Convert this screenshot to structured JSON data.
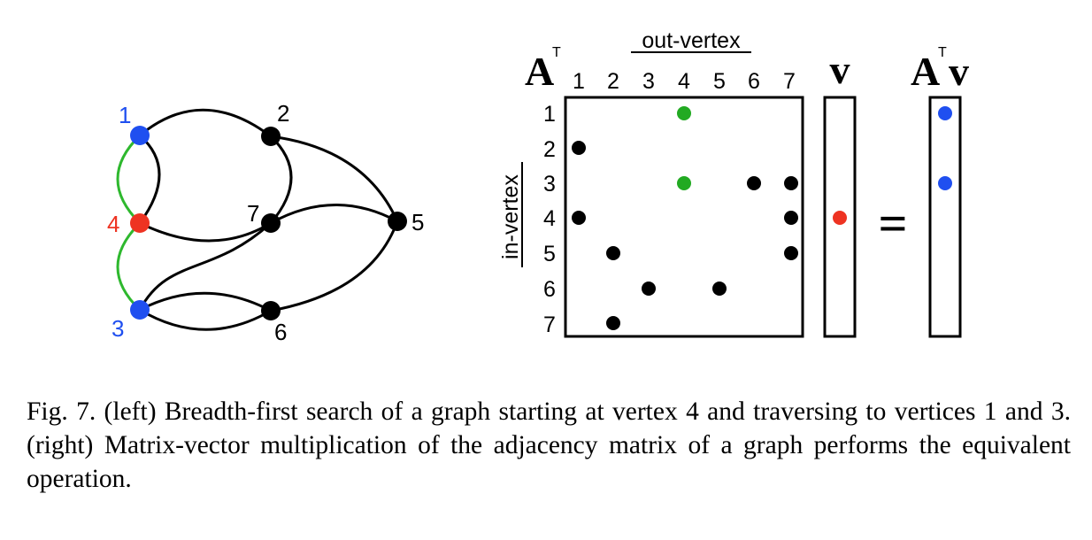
{
  "graph": {
    "vertices": [
      {
        "label": "1",
        "state": "visited"
      },
      {
        "label": "2",
        "state": "default"
      },
      {
        "label": "3",
        "state": "visited"
      },
      {
        "label": "4",
        "state": "start"
      },
      {
        "label": "5",
        "state": "default"
      },
      {
        "label": "6",
        "state": "default"
      },
      {
        "label": "7",
        "state": "default"
      }
    ],
    "edges": [
      {
        "from": "1",
        "to": "2",
        "bfs": false
      },
      {
        "from": "1",
        "to": "4",
        "bfs": false
      },
      {
        "from": "2",
        "to": "5",
        "bfs": false
      },
      {
        "from": "2",
        "to": "7",
        "bfs": false
      },
      {
        "from": "4",
        "to": "1",
        "bfs": true
      },
      {
        "from": "4",
        "to": "3",
        "bfs": true
      },
      {
        "from": "7",
        "to": "4",
        "bfs": false
      },
      {
        "from": "7",
        "to": "5",
        "bfs": false
      },
      {
        "from": "7",
        "to": "3",
        "bfs": false
      },
      {
        "from": "3",
        "to": "6",
        "bfs": false
      },
      {
        "from": "6",
        "to": "3",
        "bfs": false
      },
      {
        "from": "5",
        "to": "6",
        "bfs": false
      }
    ]
  },
  "matrix": {
    "symbol": "A",
    "superscript": "T",
    "column_header": "out-vertex",
    "row_header": "in-vertex",
    "col_labels": [
      "1",
      "2",
      "3",
      "4",
      "5",
      "6",
      "7"
    ],
    "row_labels": [
      "1",
      "2",
      "3",
      "4",
      "5",
      "6",
      "7"
    ],
    "entries": [
      {
        "row": 1,
        "col": 4,
        "highlight": true
      },
      {
        "row": 2,
        "col": 1,
        "highlight": false
      },
      {
        "row": 3,
        "col": 4,
        "highlight": true
      },
      {
        "row": 3,
        "col": 6,
        "highlight": false
      },
      {
        "row": 3,
        "col": 7,
        "highlight": false
      },
      {
        "row": 4,
        "col": 1,
        "highlight": false
      },
      {
        "row": 4,
        "col": 7,
        "highlight": false
      },
      {
        "row": 5,
        "col": 2,
        "highlight": false
      },
      {
        "row": 5,
        "col": 7,
        "highlight": false
      },
      {
        "row": 6,
        "col": 3,
        "highlight": false
      },
      {
        "row": 6,
        "col": 5,
        "highlight": false
      },
      {
        "row": 7,
        "col": 2,
        "highlight": false
      }
    ]
  },
  "vector": {
    "symbol": "v",
    "nonzero_rows": [
      4
    ]
  },
  "equals": "=",
  "result": {
    "symbol_a": "A",
    "superscript": "T",
    "symbol_v": "v",
    "nonzero_rows": [
      1,
      3
    ]
  },
  "colors": {
    "start": "#ee3322",
    "visited": "#1f4ff0",
    "bfs_edge": "#2eb82e",
    "highlight": "#22aa22",
    "default": "#000000"
  },
  "caption": "Fig. 7.  (left) Breadth-first search of a graph starting at vertex 4 and traversing to vertices 1 and 3. (right) Matrix-vector multiplication of the adjacency matrix of a graph performs the equivalent operation."
}
